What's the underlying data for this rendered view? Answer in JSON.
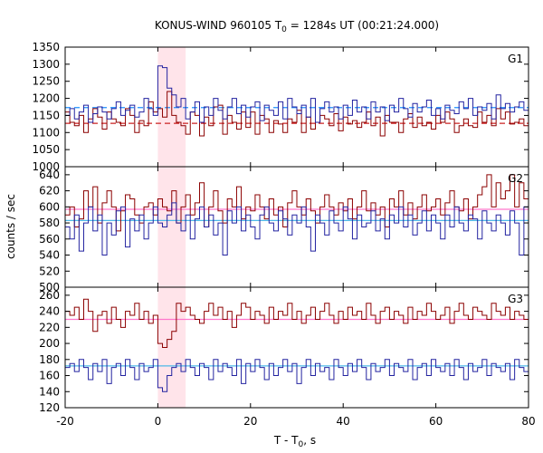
{
  "chart_data": {
    "type": "line",
    "title_main": "KONUS-WIND 960105 T",
    "title_sub": "0",
    "title_rest": " = 1284s UT (00:21:24.000)",
    "xlabel_main": "T - T",
    "xlabel_sub": "0",
    "xlabel_rest": ", s",
    "ylabel": "counts / sec",
    "xlim": [
      -20,
      80
    ],
    "x_ticks": [
      "-20",
      "0",
      "20",
      "40",
      "60",
      "80"
    ],
    "highlight_interval": [
      0,
      6
    ],
    "panels": [
      {
        "name": "G1",
        "ylim": [
          1000,
          1350
        ],
        "y_ticks": [
          "1000",
          "1050",
          "1100",
          "1150",
          "1200",
          "1250",
          "1300",
          "1350"
        ],
        "series": [
          {
            "color": "#8b0000",
            "bg_level": 1127,
            "bg_color": "#cc2222",
            "values": [
              1160,
              1130,
              1120,
              1150,
              1100,
              1140,
              1170,
              1145,
              1110,
              1160,
              1140,
              1130,
              1120,
              1170,
              1150,
              1100,
              1135,
              1120,
              1190,
              1160,
              1170,
              1145,
              1220,
              1150,
              1130,
              1120,
              1095,
              1160,
              1150,
              1090,
              1145,
              1120,
              1175,
              1180,
              1095,
              1150,
              1130,
              1110,
              1160,
              1115,
              1160,
              1095,
              1150,
              1140,
              1100,
              1135,
              1125,
              1100,
              1140,
              1130,
              1165,
              1100,
              1145,
              1110,
              1130,
              1150,
              1140,
              1120,
              1155,
              1105,
              1145,
              1125,
              1135,
              1115,
              1130,
              1160,
              1120,
              1145,
              1090,
              1150,
              1130,
              1130,
              1100,
              1140,
              1155,
              1115,
              1145,
              1120,
              1130,
              1110,
              1150,
              1130,
              1160,
              1140,
              1100,
              1120,
              1140,
              1120,
              1115,
              1160,
              1130,
              1150,
              1120,
              1170,
              1140,
              1160,
              1125,
              1130,
              1140,
              1120
            ]
          },
          {
            "color": "#2323a0",
            "bg_level": 1173,
            "bg_color": "#1e90ff",
            "values": [
              1150,
              1170,
              1140,
              1160,
              1180,
              1130,
              1155,
              1175,
              1160,
              1140,
              1170,
              1190,
              1150,
              1165,
              1180,
              1145,
              1160,
              1200,
              1170,
              1150,
              1295,
              1290,
              1230,
              1210,
              1175,
              1200,
              1140,
              1160,
              1190,
              1130,
              1175,
              1150,
              1200,
              1165,
              1140,
              1175,
              1200,
              1155,
              1180,
              1145,
              1175,
              1190,
              1135,
              1180,
              1165,
              1150,
              1190,
              1140,
              1200,
              1175,
              1155,
              1180,
              1145,
              1200,
              1130,
              1170,
              1190,
              1160,
              1175,
              1140,
              1180,
              1150,
              1195,
              1160,
              1175,
              1140,
              1190,
              1160,
              1175,
              1135,
              1180,
              1160,
              1200,
              1170,
              1145,
              1185,
              1160,
              1175,
              1195,
              1150,
              1170,
              1140,
              1180,
              1165,
              1155,
              1190,
              1170,
              1200,
              1150,
              1175,
              1165,
              1185,
              1140,
              1210,
              1170,
              1185,
              1160,
              1175,
              1190,
              1165
            ]
          }
        ]
      },
      {
        "name": "G2",
        "ylim": [
          500,
          650
        ],
        "y_ticks": [
          "500",
          "520",
          "540",
          "560",
          "580",
          "600",
          "620",
          "640"
        ],
        "series": [
          {
            "color": "#8b0000",
            "bg_level": 597,
            "bg_color": "#ff77cc",
            "values": [
              590,
              600,
              575,
              585,
              620,
              600,
              625,
              580,
              605,
              620,
              600,
              570,
              595,
              615,
              610,
              590,
              580,
              600,
              605,
              590,
              610,
              600,
              595,
              620,
              580,
              600,
              615,
              590,
              605,
              630,
              575,
              600,
              620,
              595,
              580,
              610,
              600,
              625,
              585,
              600,
              595,
              615,
              600,
              585,
              610,
              590,
              600,
              575,
              605,
              620,
              600,
              590,
              610,
              595,
              580,
              600,
              615,
              600,
              590,
              605,
              595,
              610,
              585,
              600,
              620,
              595,
              605,
              590,
              600,
              575,
              610,
              600,
              620,
              590,
              605,
              585,
              600,
              615,
              595,
              600,
              610,
              590,
              605,
              620,
              600,
              595,
              610,
              585,
              600,
              615,
              625,
              640,
              600,
              630,
              610,
              620,
              640,
              600,
              630,
              610
            ]
          },
          {
            "color": "#2323a0",
            "bg_level": 583,
            "bg_color": "#4db8e8",
            "values": [
              575,
              560,
              590,
              545,
              580,
              600,
              570,
              590,
              540,
              580,
              565,
              595,
              600,
              550,
              585,
              570,
              590,
              560,
              580,
              600,
              580,
              575,
              590,
              605,
              580,
              570,
              590,
              560,
              585,
              600,
              575,
              590,
              565,
              580,
              540,
              595,
              580,
              600,
              570,
              590,
              575,
              560,
              590,
              600,
              580,
              570,
              595,
              585,
              565,
              590,
              580,
              600,
              575,
              545,
              590,
              580,
              565,
              595,
              580,
              570,
              600,
              585,
              560,
              590,
              575,
              580,
              595,
              570,
              585,
              560,
              590,
              580,
              600,
              575,
              590,
              565,
              580,
              595,
              570,
              590,
              580,
              560,
              590,
              575,
              600,
              580,
              570,
              590,
              585,
              560,
              595,
              580,
              570,
              590,
              580,
              565,
              595,
              580,
              540,
              600
            ]
          }
        ]
      },
      {
        "name": "G3",
        "ylim": [
          120,
          270
        ],
        "y_ticks": [
          "120",
          "140",
          "160",
          "180",
          "200",
          "220",
          "240",
          "260"
        ],
        "series": [
          {
            "color": "#8b0000",
            "bg_level": 230,
            "bg_color": "#ff77cc",
            "values": [
              240,
              235,
              245,
              230,
              255,
              240,
              215,
              235,
              240,
              225,
              245,
              230,
              220,
              240,
              235,
              250,
              230,
              240,
              225,
              235,
              200,
              195,
              205,
              215,
              250,
              240,
              245,
              235,
              230,
              225,
              240,
              250,
              235,
              245,
              230,
              240,
              220,
              235,
              250,
              245,
              230,
              240,
              235,
              225,
              245,
              230,
              240,
              235,
              250,
              230,
              240,
              225,
              235,
              245,
              230,
              240,
              250,
              235,
              225,
              240,
              230,
              245,
              235,
              240,
              230,
              250,
              235,
              225,
              240,
              245,
              230,
              240,
              235,
              225,
              245,
              230,
              240,
              235,
              250,
              240,
              230,
              235,
              245,
              225,
              240,
              250,
              235,
              230,
              245,
              240,
              235,
              230,
              250,
              240,
              235,
              245,
              230,
              240,
              235,
              230
            ]
          },
          {
            "color": "#2323a0",
            "bg_level": 172,
            "bg_color": "#4db8e8",
            "values": [
              170,
              175,
              165,
              180,
              170,
              155,
              175,
              165,
              180,
              150,
              170,
              175,
              160,
              180,
              170,
              155,
              175,
              165,
              170,
              180,
              145,
              140,
              160,
              170,
              175,
              165,
              180,
              170,
              160,
              175,
              170,
              155,
              180,
              165,
              175,
              170,
              160,
              180,
              150,
              175,
              165,
              180,
              170,
              155,
              175,
              160,
              170,
              180,
              165,
              175,
              150,
              170,
              180,
              160,
              175,
              165,
              170,
              155,
              180,
              170,
              160,
              175,
              165,
              180,
              170,
              155,
              175,
              165,
              170,
              180,
              160,
              175,
              170,
              165,
              180,
              155,
              170,
              175,
              160,
              180,
              170,
              165,
              175,
              160,
              180,
              170,
              155,
              175,
              165,
              170,
              180,
              160,
              175,
              170,
              165,
              175,
              155,
              180,
              170,
              165
            ]
          }
        ]
      }
    ]
  }
}
